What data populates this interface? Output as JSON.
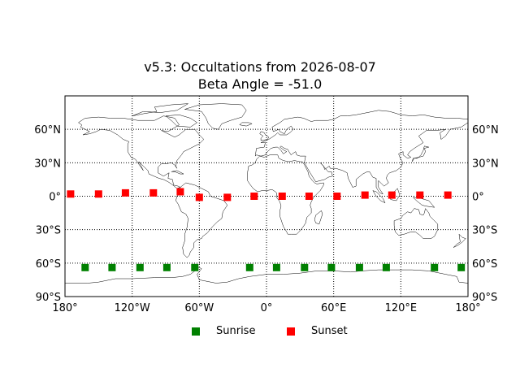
{
  "title": "v5.3: Occultations from 2026-08-07",
  "subtitle": "Beta Angle = -51.0",
  "map": {
    "lon_range": [
      -180,
      180
    ],
    "lat_range": [
      -90,
      90
    ],
    "lon_gridlines": [
      -120,
      -60,
      0,
      60,
      120
    ],
    "lat_gridlines": [
      -60,
      -30,
      0,
      30,
      60
    ],
    "lon_tick_labels": [
      {
        "lon": -180,
        "label": "180°"
      },
      {
        "lon": -120,
        "label": "120°W"
      },
      {
        "lon": -60,
        "label": "60°W"
      },
      {
        "lon": 0,
        "label": "0°"
      },
      {
        "lon": 60,
        "label": "60°E"
      },
      {
        "lon": 120,
        "label": "120°E"
      },
      {
        "lon": 180,
        "label": "180°"
      }
    ],
    "lat_tick_labels": [
      {
        "lat": 60,
        "label": "60°N"
      },
      {
        "lat": 30,
        "label": "30°N"
      },
      {
        "lat": 0,
        "label": "0°"
      },
      {
        "lat": -30,
        "label": "30°S"
      },
      {
        "lat": -60,
        "label": "60°S"
      },
      {
        "lat": -90,
        "label": "90°S"
      }
    ],
    "grid_style": "dotted",
    "coastlines": true
  },
  "chart_data": {
    "type": "scatter",
    "title": "v5.3: Occultations from 2026-08-07",
    "subtitle": "Beta Angle = -51.0",
    "xlim": [
      -180,
      180
    ],
    "ylim": [
      -90,
      90
    ],
    "grid": true,
    "legend_position": "bottom-center",
    "series": [
      {
        "name": "Sunrise",
        "color": "#008000",
        "marker": "square",
        "points": [
          {
            "lon": -162,
            "lat": -64
          },
          {
            "lon": -138,
            "lat": -64
          },
          {
            "lon": -113,
            "lat": -64
          },
          {
            "lon": -89,
            "lat": -64
          },
          {
            "lon": -64,
            "lat": -64
          },
          {
            "lon": -15,
            "lat": -64
          },
          {
            "lon": 9,
            "lat": -64
          },
          {
            "lon": 34,
            "lat": -64
          },
          {
            "lon": 58,
            "lat": -64
          },
          {
            "lon": 83,
            "lat": -64
          },
          {
            "lon": 107,
            "lat": -64
          },
          {
            "lon": 150,
            "lat": -64
          },
          {
            "lon": 174,
            "lat": -64
          }
        ]
      },
      {
        "name": "Sunset",
        "color": "#ff0000",
        "marker": "square",
        "points": [
          {
            "lon": -175,
            "lat": 2
          },
          {
            "lon": -150,
            "lat": 2
          },
          {
            "lon": -126,
            "lat": 3
          },
          {
            "lon": -101,
            "lat": 3
          },
          {
            "lon": -77,
            "lat": 4
          },
          {
            "lon": -60,
            "lat": -1
          },
          {
            "lon": -35,
            "lat": -1
          },
          {
            "lon": -11,
            "lat": 0
          },
          {
            "lon": 14,
            "lat": 0
          },
          {
            "lon": 38,
            "lat": 0
          },
          {
            "lon": 63,
            "lat": 0
          },
          {
            "lon": 88,
            "lat": 1
          },
          {
            "lon": 112,
            "lat": 1
          },
          {
            "lon": 137,
            "lat": 1
          },
          {
            "lon": 162,
            "lat": 1
          }
        ]
      }
    ]
  },
  "legend": {
    "items": [
      {
        "label": "Sunrise",
        "color": "#008000"
      },
      {
        "label": "Sunset",
        "color": "#ff0000"
      }
    ]
  }
}
